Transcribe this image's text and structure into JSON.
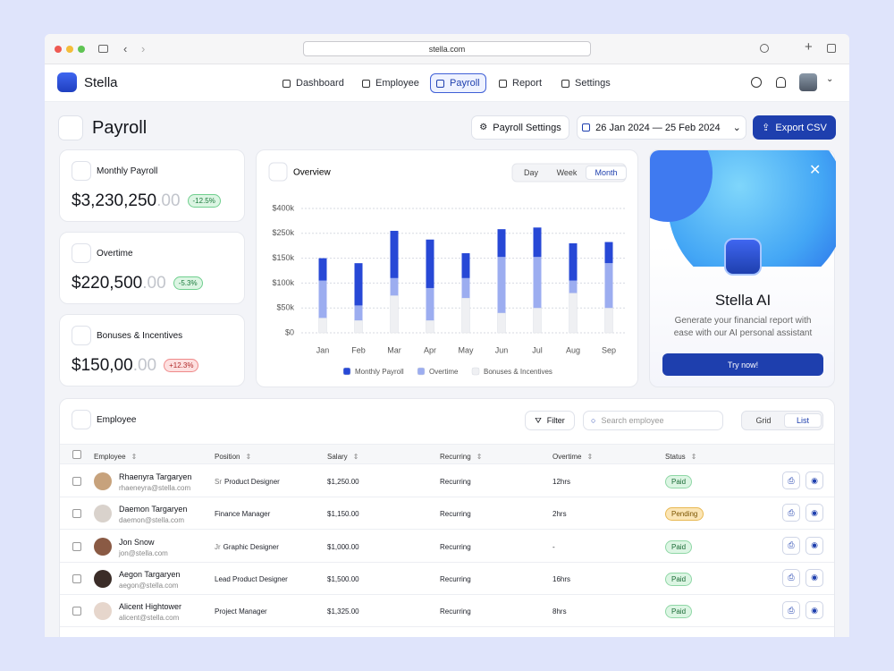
{
  "browser": {
    "url": "stella.com"
  },
  "nav": {
    "brand": "Stella",
    "items": [
      "Dashboard",
      "Employee",
      "Payroll",
      "Report",
      "Settings"
    ],
    "active": 2
  },
  "header": {
    "title": "Payroll",
    "settings_button": "Payroll Settings",
    "date_range": "26 Jan 2024 — 25 Feb 2024",
    "export_button": "Export CSV"
  },
  "cards": [
    {
      "title": "Monthly Payroll",
      "amount": "$3,230,250",
      "decimals": ".00",
      "change": "-12.5%"
    },
    {
      "title": "Overtime",
      "amount": "$220,500",
      "decimals": ".00",
      "change": "-5.3%"
    },
    {
      "title": "Bonuses & Incentives",
      "amount": "$150,00",
      "decimals": ".00",
      "change": "+12.3%"
    }
  ],
  "overview_tabs": {
    "items": [
      "Day",
      "Week",
      "Month"
    ],
    "active": 2
  },
  "chart_data": {
    "type": "bar",
    "stacked": true,
    "title": "Overview",
    "categories": [
      "Jan",
      "Feb",
      "Mar",
      "Apr",
      "May",
      "Jun",
      "Jul",
      "Aug",
      "Sep"
    ],
    "series": [
      {
        "name": "Monthly Payroll",
        "color": "#2748d6",
        "values": [
          45,
          85,
          155,
          135,
          60,
          120,
          130,
          105,
          75
        ]
      },
      {
        "name": "Overtime",
        "color": "#9cadf0",
        "values": [
          75,
          30,
          35,
          65,
          40,
          115,
          105,
          25,
          90
        ]
      },
      {
        "name": "Bonuses & Incentives",
        "color": "#eff0f3",
        "values": [
          30,
          25,
          75,
          25,
          70,
          40,
          50,
          80,
          50
        ]
      }
    ],
    "ylim": [
      0,
      400
    ],
    "yticks": [
      {
        "value": 0,
        "label": "$0"
      },
      {
        "value": 50,
        "label": "$50k"
      },
      {
        "value": 100,
        "label": "$100k"
      },
      {
        "value": 150,
        "label": "$150k"
      },
      {
        "value": 250,
        "label": "$250k"
      },
      {
        "value": 400,
        "label": "$400k"
      }
    ],
    "grid": true
  },
  "ai_card": {
    "title": "Stella AI",
    "description": "Generate your financial report with ease with our AI personal assistant",
    "button": "Try now!"
  },
  "table": {
    "title": "Employee",
    "filter": "Filter",
    "search_placeholder": "Search employee",
    "views": [
      "Grid",
      "List"
    ],
    "active_view": 1,
    "columns": [
      "Employee",
      "Position",
      "Salary",
      "Recurring",
      "Overtime",
      "Status"
    ],
    "rows": [
      {
        "name": "Rhaenyra Targaryen",
        "email": "rhaeneyra@stella.com",
        "position_level": "Sr",
        "position": "Product Designer",
        "salary": "$1,250.00",
        "recurring": "Recurring",
        "overtime": "12hrs",
        "status": "Paid"
      },
      {
        "name": "Daemon Targaryen",
        "email": "daemon@stella.com",
        "position": "Finance Manager",
        "salary": "$1,150.00",
        "recurring": "Recurring",
        "overtime": "2hrs",
        "status": "Pending"
      },
      {
        "name": "Jon Snow",
        "email": "jon@stella.com",
        "position_level": "Jr",
        "position": "Graphic Designer",
        "salary": "$1,000.00",
        "recurring": "Recurring",
        "overtime": "-",
        "status": "Paid"
      },
      {
        "name": "Aegon Targaryen",
        "email": "aegon@stella.com",
        "position": "Lead Product Designer",
        "salary": "$1,500.00",
        "recurring": "Recurring",
        "overtime": "16hrs",
        "status": "Paid"
      },
      {
        "name": "Alicent Hightower",
        "email": "alicent@stella.com",
        "position": "Project Manager",
        "salary": "$1,325.00",
        "recurring": "Recurring",
        "overtime": "8hrs",
        "status": "Paid"
      }
    ]
  }
}
